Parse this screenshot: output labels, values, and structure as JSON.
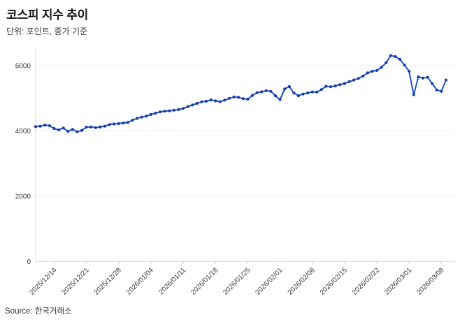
{
  "header": {
    "title": "코스피 지수 추이",
    "subtitle": "단위: 포인트, 종가 기준"
  },
  "footer": {
    "source": "Source: 한국거래소"
  },
  "chart_data": {
    "type": "line",
    "title": "코스피 지수 추이",
    "unit_note": "단위: 포인트, 종가 기준",
    "source": "Source: 한국거래소",
    "legend": "none",
    "grid": "horizontal",
    "ylim": [
      0,
      6500
    ],
    "yticks": [
      0,
      2000,
      4000,
      6000
    ],
    "x_tick_labels": [
      "2025/12/14",
      "2025/12/21",
      "2025/12/28",
      "2026/01/04",
      "2026/01/11",
      "2026/01/18",
      "2026/01/25",
      "2026/02/01",
      "2026/02/08",
      "2026/02/15",
      "2026/02/22",
      "2026/03/01",
      "2026/03/08"
    ],
    "line_color": "#2151c4",
    "marker_color": "#173ea8",
    "grid_color": "#ededed",
    "axis_color": "#d9d9d9",
    "x": [
      "2025/12/10",
      "2025/12/11",
      "2025/12/12",
      "2025/12/13",
      "2025/12/14",
      "2025/12/15",
      "2025/12/16",
      "2025/12/17",
      "2025/12/18",
      "2025/12/19",
      "2025/12/20",
      "2025/12/21",
      "2025/12/22",
      "2025/12/23",
      "2025/12/24",
      "2025/12/25",
      "2025/12/26",
      "2025/12/27",
      "2025/12/28",
      "2025/12/29",
      "2025/12/30",
      "2025/12/31",
      "2026/01/01",
      "2026/01/02",
      "2026/01/03",
      "2026/01/04",
      "2026/01/05",
      "2026/01/06",
      "2026/01/07",
      "2026/01/08",
      "2026/01/09",
      "2026/01/10",
      "2026/01/11",
      "2026/01/12",
      "2026/01/13",
      "2026/01/14",
      "2026/01/15",
      "2026/01/16",
      "2026/01/17",
      "2026/01/18",
      "2026/01/19",
      "2026/01/20",
      "2026/01/21",
      "2026/01/22",
      "2026/01/23",
      "2026/01/24",
      "2026/01/25",
      "2026/01/26",
      "2026/01/27",
      "2026/01/28",
      "2026/01/29",
      "2026/01/30",
      "2026/01/31",
      "2026/02/01",
      "2026/02/02",
      "2026/02/03",
      "2026/02/04",
      "2026/02/05",
      "2026/02/06",
      "2026/02/07",
      "2026/02/08",
      "2026/02/09",
      "2026/02/10",
      "2026/02/11",
      "2026/02/12",
      "2026/02/13",
      "2026/02/14",
      "2026/02/15",
      "2026/02/16",
      "2026/02/17",
      "2026/02/18",
      "2026/02/19",
      "2026/02/20",
      "2026/02/21",
      "2026/02/22",
      "2026/02/23",
      "2026/02/24",
      "2026/02/25",
      "2026/02/26",
      "2026/02/27",
      "2026/02/28",
      "2026/03/01",
      "2026/03/02",
      "2026/03/03",
      "2026/03/04",
      "2026/03/05",
      "2026/03/06",
      "2026/03/07",
      "2026/03/08",
      "2026/03/09"
    ],
    "values": [
      4130,
      4145,
      4180,
      4160,
      4075,
      4030,
      4090,
      3990,
      4045,
      3975,
      4015,
      4115,
      4120,
      4100,
      4120,
      4145,
      4195,
      4215,
      4225,
      4245,
      4260,
      4330,
      4385,
      4425,
      4455,
      4505,
      4545,
      4585,
      4605,
      4615,
      4635,
      4655,
      4690,
      4745,
      4795,
      4845,
      4890,
      4910,
      4950,
      4920,
      4895,
      4945,
      5000,
      5040,
      5030,
      4990,
      4975,
      5090,
      5170,
      5200,
      5235,
      5215,
      5080,
      4960,
      5290,
      5360,
      5165,
      5080,
      5130,
      5165,
      5195,
      5190,
      5270,
      5370,
      5355,
      5380,
      5420,
      5455,
      5510,
      5560,
      5610,
      5680,
      5780,
      5830,
      5855,
      5950,
      6090,
      6310,
      6280,
      6200,
      6020,
      5830,
      5110,
      5655,
      5620,
      5645,
      5455,
      5255,
      5215,
      5560
    ]
  }
}
